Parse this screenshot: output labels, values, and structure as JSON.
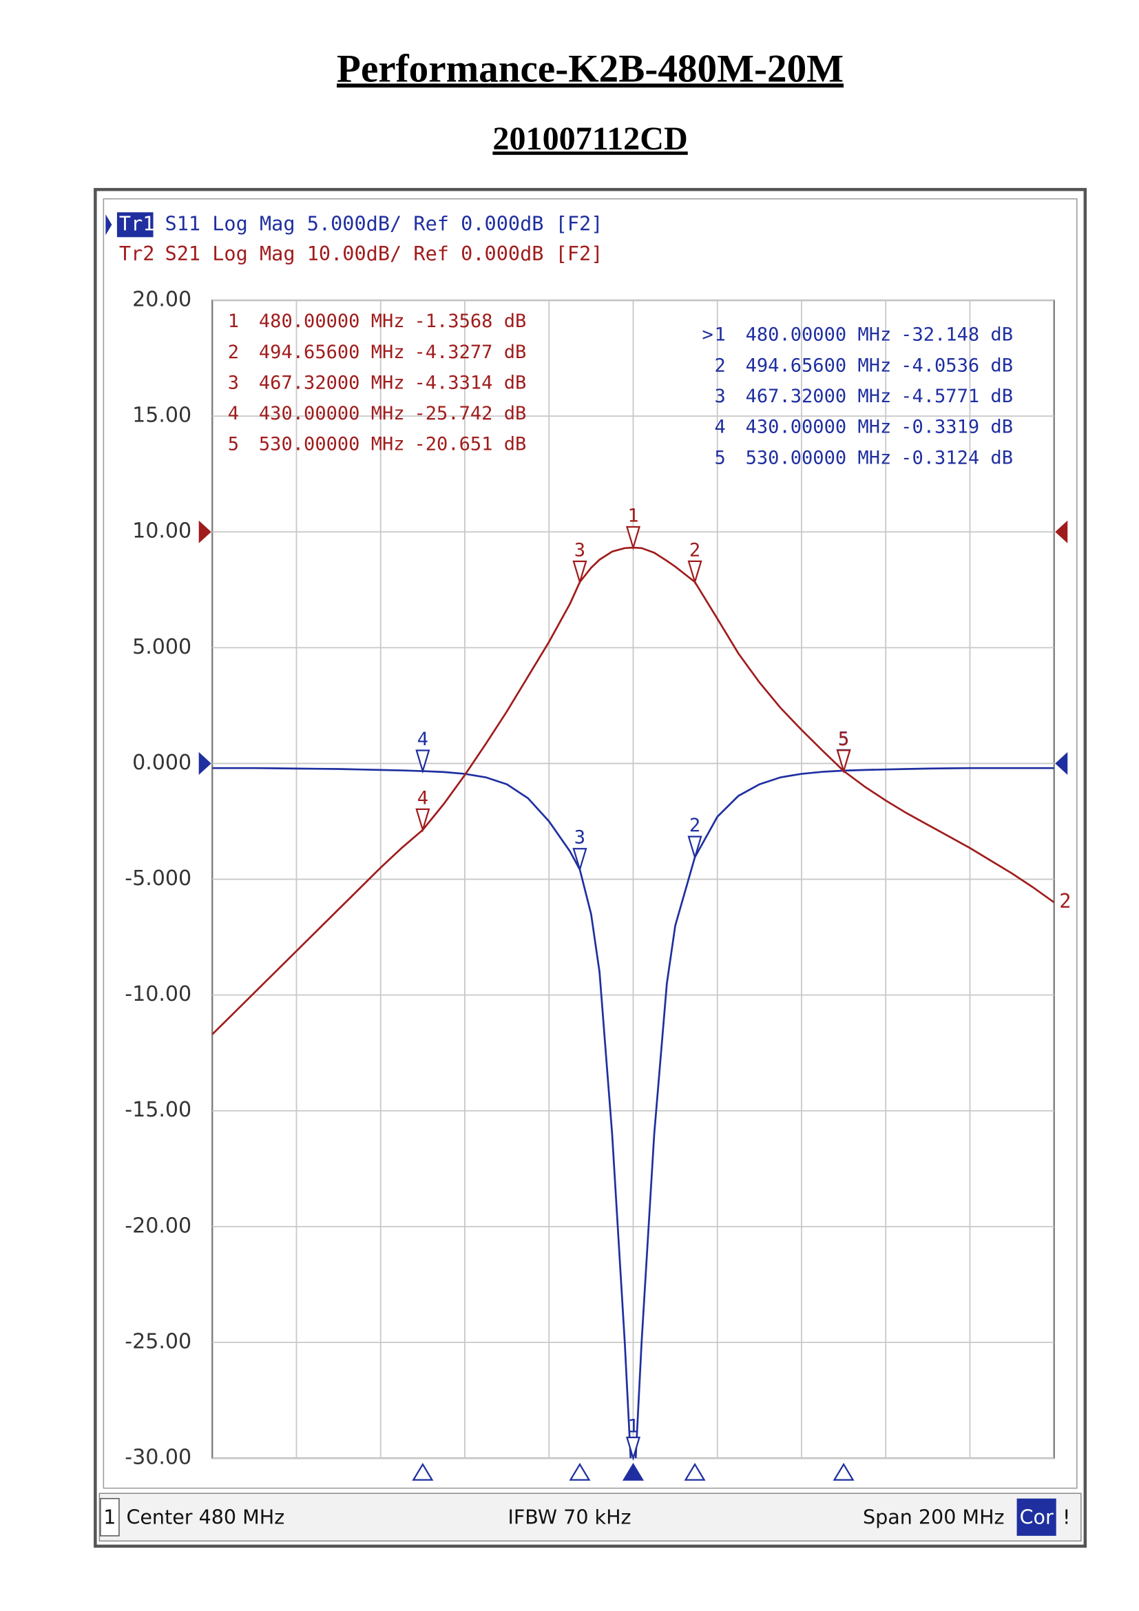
{
  "chart_data": {
    "type": "line",
    "title": "Performance-K2B-480M-20M",
    "subtitle": "201007112CD",
    "xlim": [
      380,
      580
    ],
    "ylim": [
      -30,
      20
    ],
    "y2lim": [
      -80,
      20
    ],
    "yticks": [
      {
        "value": 20,
        "label": "20.00"
      },
      {
        "value": 15,
        "label": "15.00"
      },
      {
        "value": 10,
        "label": "10.00"
      },
      {
        "value": 5,
        "label": "5.000"
      },
      {
        "value": 0,
        "label": "0.000"
      },
      {
        "value": -5,
        "label": "-5.000"
      },
      {
        "value": -10,
        "label": "-10.00"
      },
      {
        "value": -15,
        "label": "-15.00"
      },
      {
        "value": -20,
        "label": "-20.00"
      },
      {
        "value": -25,
        "label": "-25.00"
      },
      {
        "value": -30,
        "label": "-30.00"
      }
    ],
    "grid": true,
    "x": [
      380,
      385,
      390,
      395,
      400,
      405,
      410,
      415,
      420,
      425,
      430,
      435,
      440,
      445,
      450,
      455,
      460,
      465,
      467.32,
      470,
      472,
      475,
      478,
      480,
      482,
      485,
      488,
      490,
      494.656,
      500,
      505,
      510,
      515,
      520,
      525,
      530,
      535,
      540,
      545,
      550,
      555,
      560,
      565,
      570,
      575,
      580
    ],
    "series": [
      {
        "name": "Tr1",
        "header": "S11 Log Mag 5.000dB/ Ref 0.000dB [F2]",
        "color": "#1f2fa0",
        "ref": 0,
        "active_indicator": ">",
        "active_marker": 0,
        "values": [
          -0.2,
          -0.2,
          -0.2,
          -0.21,
          -0.22,
          -0.23,
          -0.24,
          -0.26,
          -0.28,
          -0.3,
          -0.33,
          -0.37,
          -0.45,
          -0.6,
          -0.9,
          -1.5,
          -2.5,
          -3.8,
          -4.58,
          -6.5,
          -9,
          -16,
          -25,
          -32.148,
          -25,
          -16,
          -9.5,
          -7,
          -4.05,
          -2.3,
          -1.4,
          -0.9,
          -0.6,
          -0.45,
          -0.36,
          -0.31,
          -0.28,
          -0.26,
          -0.24,
          -0.22,
          -0.21,
          -0.2,
          -0.2,
          -0.2,
          -0.2,
          -0.2
        ],
        "markers": [
          {
            "id": "1",
            "x": 480,
            "x_label": "480.00000 MHz",
            "value": -32.148,
            "value_label": "-32.148 dB"
          },
          {
            "id": "2",
            "x": 494.656,
            "x_label": "494.65600 MHz",
            "value": -4.0536,
            "value_label": "-4.0536 dB"
          },
          {
            "id": "3",
            "x": 467.32,
            "x_label": "467.32000 MHz",
            "value": -4.5771,
            "value_label": "-4.5771 dB"
          },
          {
            "id": "4",
            "x": 430,
            "x_label": "430.00000 MHz",
            "value": -0.3319,
            "value_label": "-0.3319 dB"
          },
          {
            "id": "5",
            "x": 530,
            "x_label": "530.00000 MHz",
            "value": -0.3124,
            "value_label": "-0.3124 dB"
          }
        ]
      },
      {
        "name": "Tr2",
        "header": "S21 Log Mag 10.00dB/ Ref 0.000dB [F2]",
        "color": "#a01c1c",
        "ref": 0,
        "axis": "y2",
        "end_label": "2",
        "values": [
          -43.4,
          -41.6,
          -39.8,
          -38,
          -36.2,
          -34.4,
          -32.6,
          -30.8,
          -29,
          -27.3,
          -25.742,
          -23.5,
          -21,
          -18.3,
          -15.5,
          -12.5,
          -9.5,
          -6.2,
          -4.3314,
          -3.1,
          -2.4,
          -1.7,
          -1.4,
          -1.3568,
          -1.4,
          -1.8,
          -2.5,
          -3,
          -4.3277,
          -7.5,
          -10.5,
          -13,
          -15.2,
          -17.1,
          -18.9,
          -20.651,
          -22,
          -23.2,
          -24.3,
          -25.3,
          -26.3,
          -27.3,
          -28.4,
          -29.5,
          -30.7,
          -32
        ],
        "markers": [
          {
            "id": "1",
            "x": 480,
            "x_label": "480.00000 MHz",
            "value": -1.3568,
            "value_label": "-1.3568 dB"
          },
          {
            "id": "2",
            "x": 494.656,
            "x_label": "494.65600 MHz",
            "value": -4.3277,
            "value_label": "-4.3277 dB"
          },
          {
            "id": "3",
            "x": 467.32,
            "x_label": "467.32000 MHz",
            "value": -4.3314,
            "value_label": "-4.3314 dB"
          },
          {
            "id": "4",
            "x": 430,
            "x_label": "430.00000 MHz",
            "value": -25.742,
            "value_label": "-25.742 dB"
          },
          {
            "id": "5",
            "x": 530,
            "x_label": "530.00000 MHz",
            "value": -20.651,
            "value_label": "-20.651 dB"
          }
        ]
      }
    ],
    "footer": {
      "channel": "1",
      "center": "Center 480 MHz",
      "ifbw": "IFBW 70 kHz",
      "span": "Span 200 MHz",
      "cor": "Cor",
      "status": "!"
    }
  }
}
